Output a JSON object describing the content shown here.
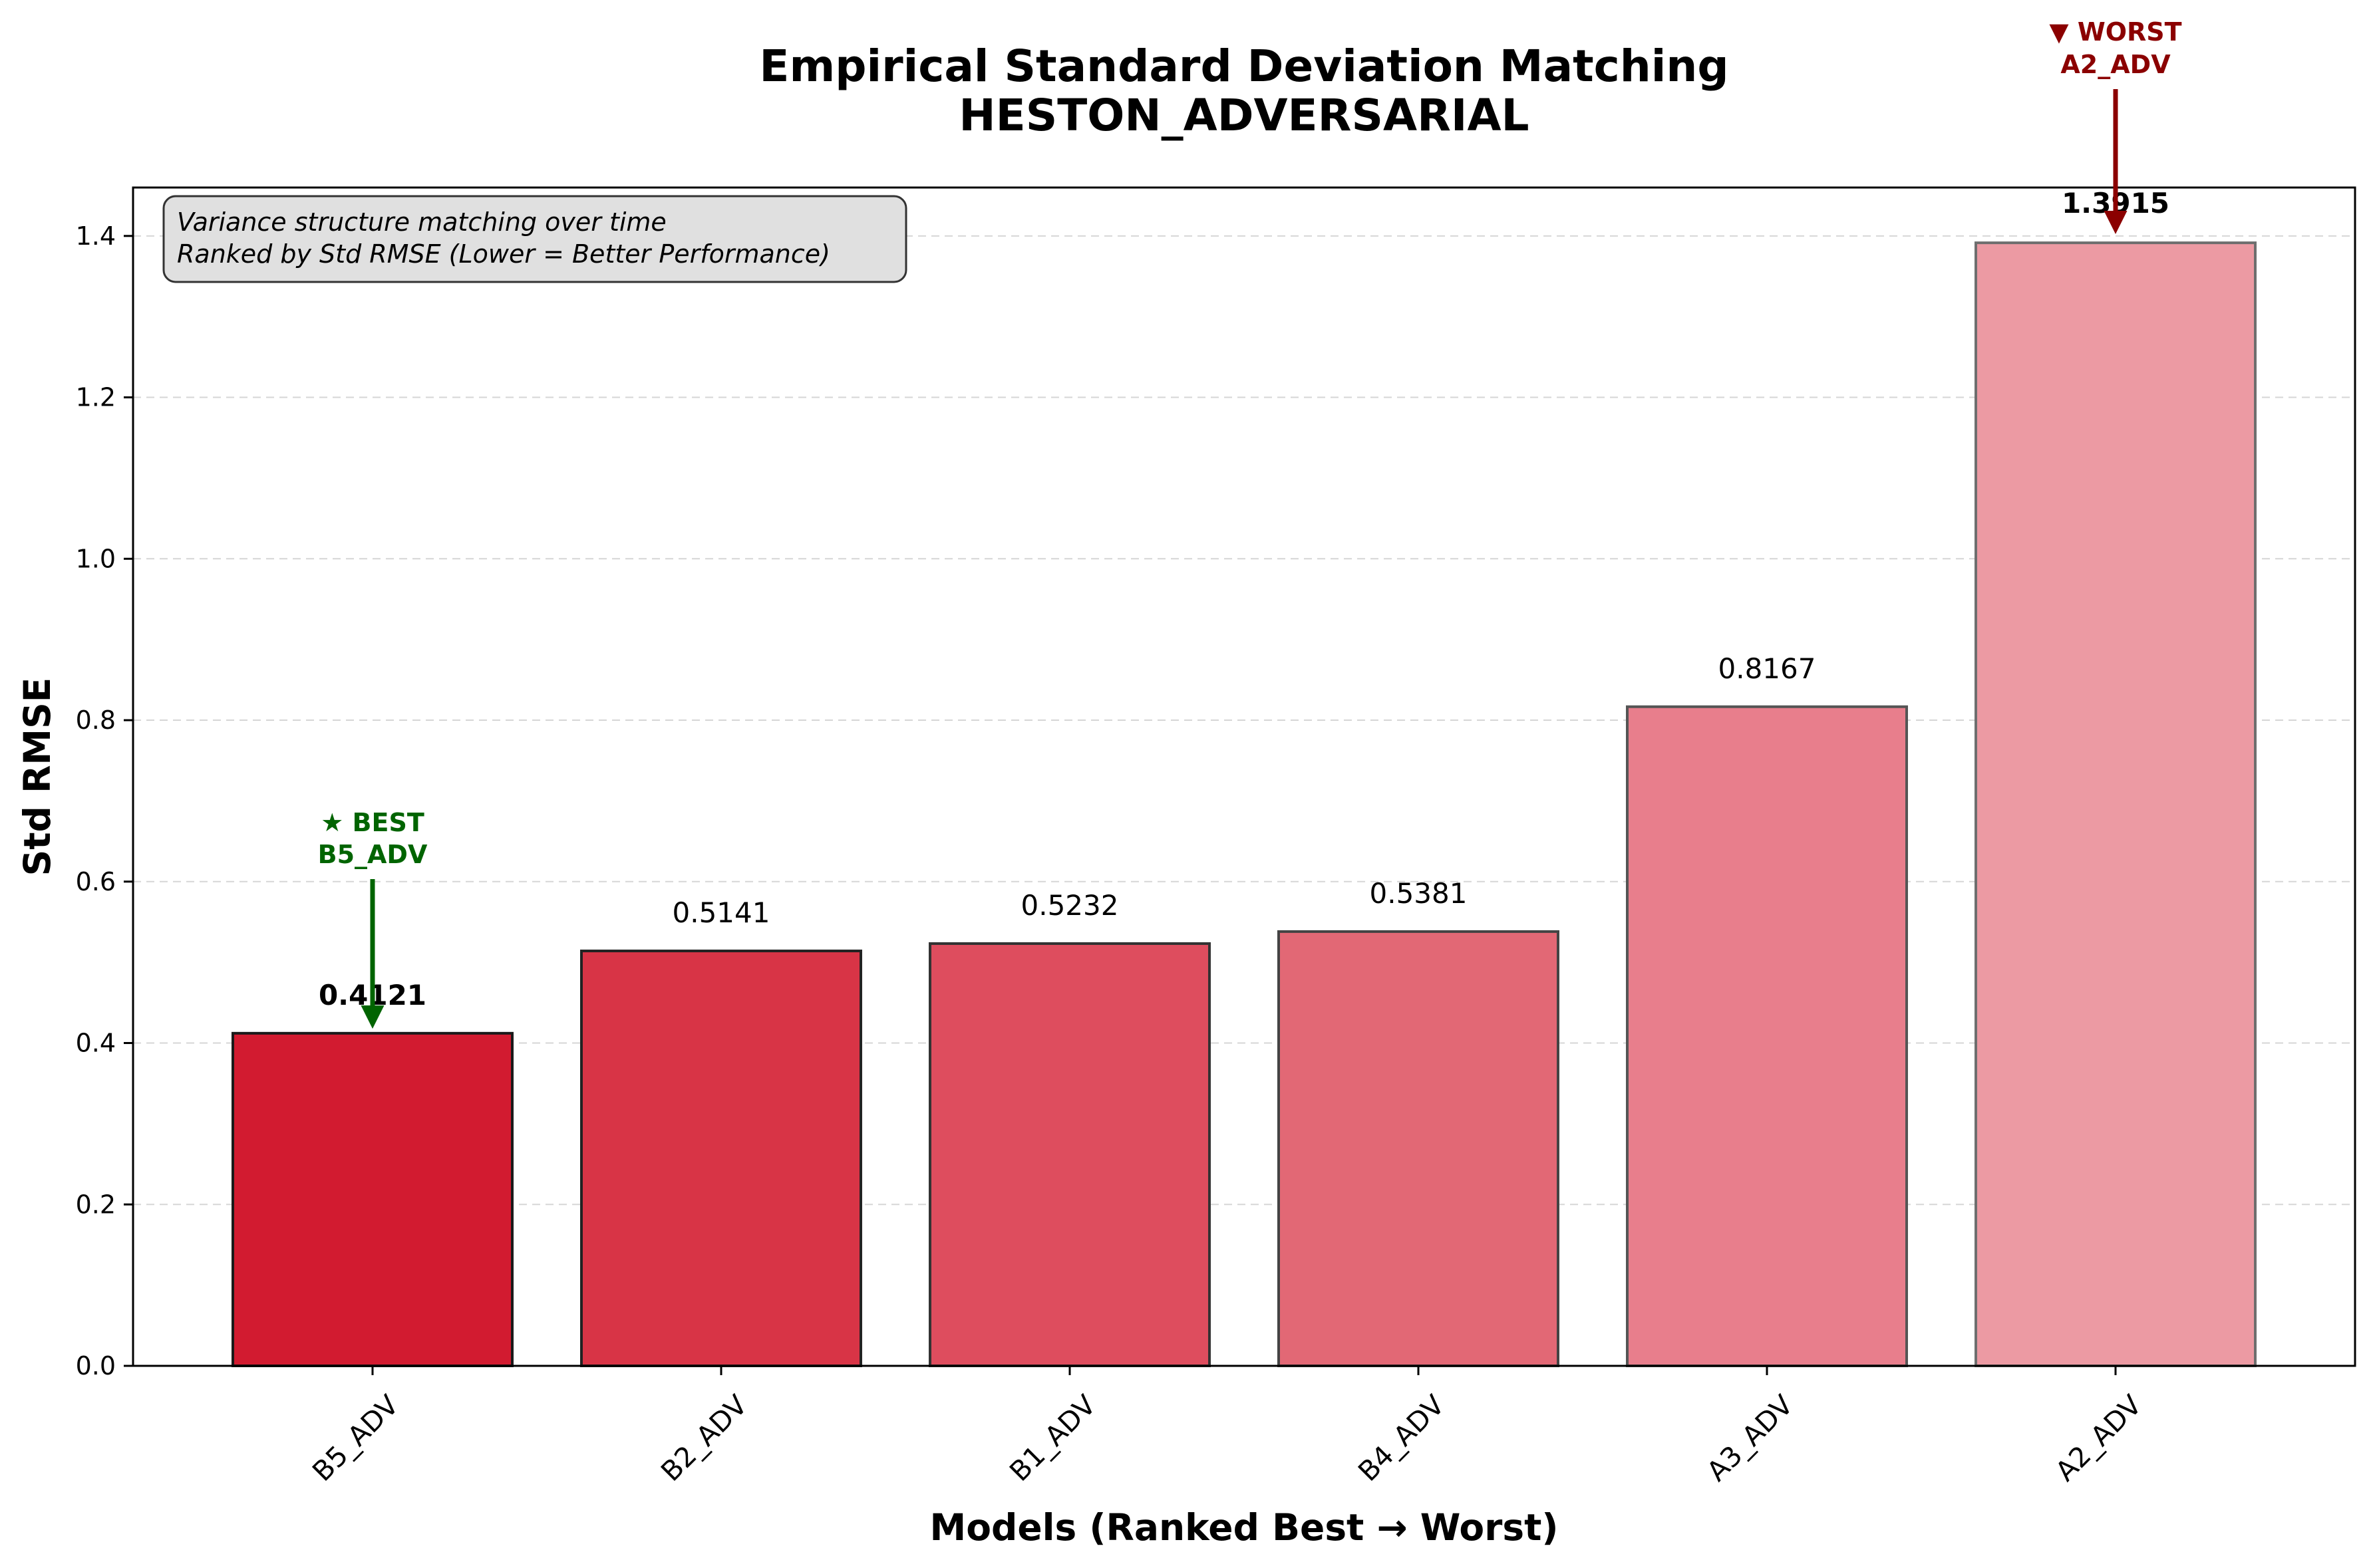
{
  "chart_data": {
    "type": "bar",
    "title_lines": [
      "Empirical Standard Deviation Matching",
      "HESTON_ADVERSARIAL"
    ],
    "xlabel": "Models (Ranked Best → Worst)",
    "ylabel": "Std RMSE",
    "ylim": [
      0,
      1.46
    ],
    "yticks": [
      "0.0",
      "0.2",
      "0.4",
      "0.6",
      "0.8",
      "1.0",
      "1.2",
      "1.4"
    ],
    "grid": "y-dashed",
    "categories": [
      "B5_ADV",
      "B2_ADV",
      "B1_ADV",
      "B4_ADV",
      "A3_ADV",
      "A2_ADV"
    ],
    "values": [
      0.4121,
      0.5141,
      0.5232,
      0.5381,
      0.8167,
      1.3915
    ],
    "value_labels": [
      "0.4121",
      "0.5141",
      "0.5232",
      "0.5381",
      "0.8167",
      "1.3915"
    ],
    "bar_colors": [
      "#d21b30",
      "#d83446",
      "#de4d5e",
      "#e26875",
      "#e87e8c",
      "#ec9aa3"
    ],
    "bar_edge_colors": [
      "#1a1a1a",
      "#222222",
      "#333333",
      "#444444",
      "#555555",
      "#6e6e6e"
    ],
    "note_box": {
      "lines": [
        "Variance structure matching over time",
        "Ranked by Std RMSE (Lower = Better Performance)"
      ],
      "placement": "top-left"
    },
    "best_annotation": {
      "lines": [
        "★ BEST",
        "B5_ADV"
      ],
      "color": "#006400",
      "value_label": "0.4121"
    },
    "worst_annotation": {
      "lines": [
        "▼ WORST",
        "A2_ADV"
      ],
      "color": "#8b0000",
      "value_label": "1.3915"
    }
  }
}
